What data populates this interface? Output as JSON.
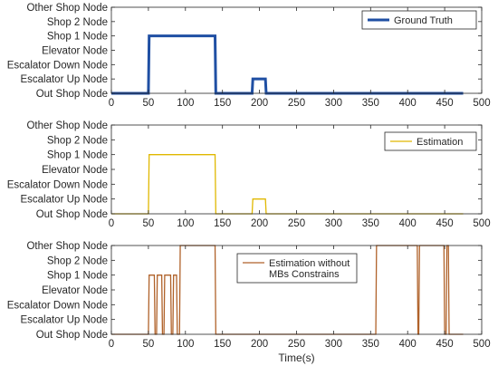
{
  "chart_data": [
    {
      "type": "line",
      "title": "",
      "xlabel": "",
      "ylabel": "",
      "xlim": [
        0,
        500
      ],
      "x_ticks": [
        "0",
        "50",
        "100",
        "150",
        "200",
        "250",
        "300",
        "350",
        "400",
        "450",
        "500"
      ],
      "y_categories": [
        "Out Shop Node",
        "Escalator Up Node",
        "Escalator Down Node",
        "Elevator Node",
        "Shop 1 Node",
        "Shop 2 Node",
        "Other Shop Node"
      ],
      "grid": false,
      "legend_position": "top-right",
      "series": [
        {
          "name": "Ground Truth",
          "color": "#1f4fa3",
          "line_width": "thick",
          "x": [
            0,
            50,
            51,
            140,
            141,
            190,
            191,
            208,
            209,
            475
          ],
          "y": [
            0,
            0,
            4,
            4,
            0,
            0,
            1,
            1,
            0,
            0
          ]
        }
      ]
    },
    {
      "type": "line",
      "title": "",
      "xlabel": "",
      "ylabel": "",
      "xlim": [
        0,
        500
      ],
      "x_ticks": [
        "0",
        "50",
        "100",
        "150",
        "200",
        "250",
        "300",
        "350",
        "400",
        "450",
        "500"
      ],
      "y_categories": [
        "Out Shop Node",
        "Escalator Up Node",
        "Escalator Down Node",
        "Elevator Node",
        "Shop 1 Node",
        "Shop 2 Node",
        "Other Shop Node"
      ],
      "grid": false,
      "legend_position": "top-right",
      "series": [
        {
          "name": "Estimation",
          "color": "#e0b800",
          "line_width": "thin",
          "x": [
            0,
            50,
            51,
            140,
            141,
            190,
            191,
            208,
            209,
            475
          ],
          "y": [
            0,
            0,
            4,
            4,
            0,
            0,
            1,
            1,
            0,
            0
          ]
        }
      ]
    },
    {
      "type": "line",
      "title": "",
      "xlabel": "Time(s)",
      "ylabel": "",
      "xlim": [
        0,
        500
      ],
      "x_ticks": [
        "0",
        "50",
        "100",
        "150",
        "200",
        "250",
        "300",
        "350",
        "400",
        "450",
        "500"
      ],
      "y_categories": [
        "Out Shop Node",
        "Escalator Up Node",
        "Escalator Down Node",
        "Elevator Node",
        "Shop 1 Node",
        "Shop 2 Node",
        "Other Shop Node"
      ],
      "grid": false,
      "legend_position": "top-right",
      "series": [
        {
          "name": "Estimation without MBs Constrains",
          "color": "#b0622a",
          "line_width": "thin",
          "x": [
            0,
            50,
            51,
            58,
            59,
            61,
            62,
            68,
            69,
            71,
            72,
            80,
            81,
            83,
            84,
            88,
            89,
            92,
            93,
            95,
            96,
            140,
            141,
            357,
            358,
            413,
            414,
            415,
            416,
            449,
            450,
            452,
            453,
            455,
            456,
            475
          ],
          "y": [
            0,
            0,
            4,
            4,
            0,
            0,
            4,
            4,
            0,
            0,
            4,
            4,
            0,
            0,
            4,
            4,
            0,
            0,
            6,
            6,
            6,
            6,
            0,
            0,
            6,
            6,
            0,
            0,
            6,
            6,
            0,
            0,
            6,
            6,
            0,
            0
          ]
        }
      ]
    }
  ]
}
